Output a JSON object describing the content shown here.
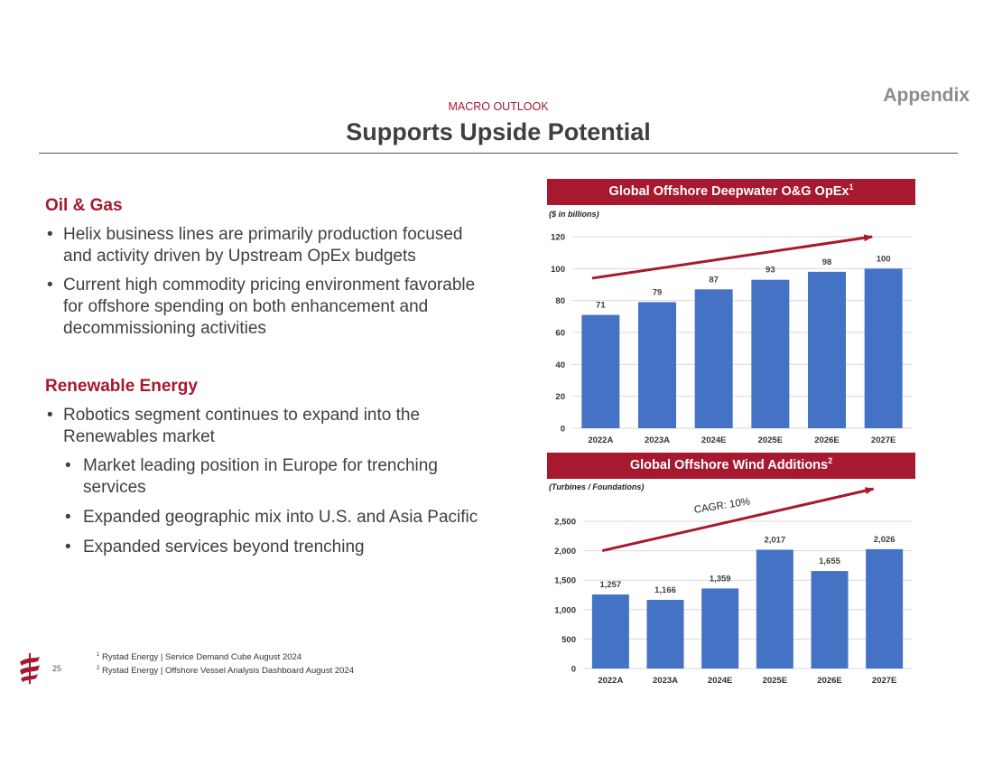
{
  "header": {
    "appendix": "Appendix",
    "eyebrow": "MACRO OUTLOOK",
    "title": "Supports Upside Potential"
  },
  "left": {
    "oil_gas": {
      "title": "Oil & Gas",
      "bullets": [
        "Helix business lines are primarily production focused and activity driven by Upstream OpEx budgets",
        "Current high commodity pricing environment favorable for offshore spending on both enhancement and decommissioning activities"
      ]
    },
    "renewables": {
      "title": "Renewable Energy",
      "bullet": "Robotics segment continues to expand into the Renewables market",
      "sub_bullets": [
        "Market leading position in Europe for trenching services",
        "Expanded geographic mix into U.S. and Asia Pacific",
        "Expanded services beyond trenching"
      ]
    }
  },
  "footer": {
    "page_number": "25",
    "note1_mark": "1",
    "note1": "Rystad Energy | Service Demand Cube August 2024",
    "note2_mark": "2",
    "note2": "Rystad Energy | Offshore Vessel Analysis Dashboard August 2024"
  },
  "colors": {
    "accent": "#a6192e",
    "bar": "#4472c4",
    "grid": "#d9d9d9"
  },
  "chart_data": [
    {
      "type": "bar",
      "title": "Global Offshore Deepwater O&G OpEx",
      "title_note": "1",
      "unit": "($ in billions)",
      "categories": [
        "2022A",
        "2023A",
        "2024E",
        "2025E",
        "2026E",
        "2027E"
      ],
      "values": [
        71,
        79,
        87,
        93,
        98,
        100
      ],
      "value_labels": [
        "71",
        "79",
        "87",
        "93",
        "98",
        "100"
      ],
      "yticks": [
        "0",
        "20",
        "40",
        "60",
        "80",
        "100",
        "120"
      ],
      "ylim": [
        0,
        120
      ],
      "grid": true,
      "trend_arrow": {
        "from": 94,
        "to": 120
      }
    },
    {
      "type": "bar",
      "title": "Global Offshore Wind Additions",
      "title_note": "2",
      "unit": "(Turbines / Foundations)",
      "categories": [
        "2022A",
        "2023A",
        "2024E",
        "2025E",
        "2026E",
        "2027E"
      ],
      "values": [
        1257,
        1166,
        1359,
        2017,
        1655,
        2026
      ],
      "value_labels": [
        "1,257",
        "1,166",
        "1,359",
        "2,017",
        "1,655",
        "2,026"
      ],
      "yticks": [
        "0",
        "500",
        "1,000",
        "1,500",
        "2,000",
        "2,500"
      ],
      "ylim": [
        0,
        2500
      ],
      "grid": true,
      "annotation": "CAGR: 10%",
      "trend_arrow": {
        "from": 2000,
        "to": 3050
      }
    }
  ]
}
